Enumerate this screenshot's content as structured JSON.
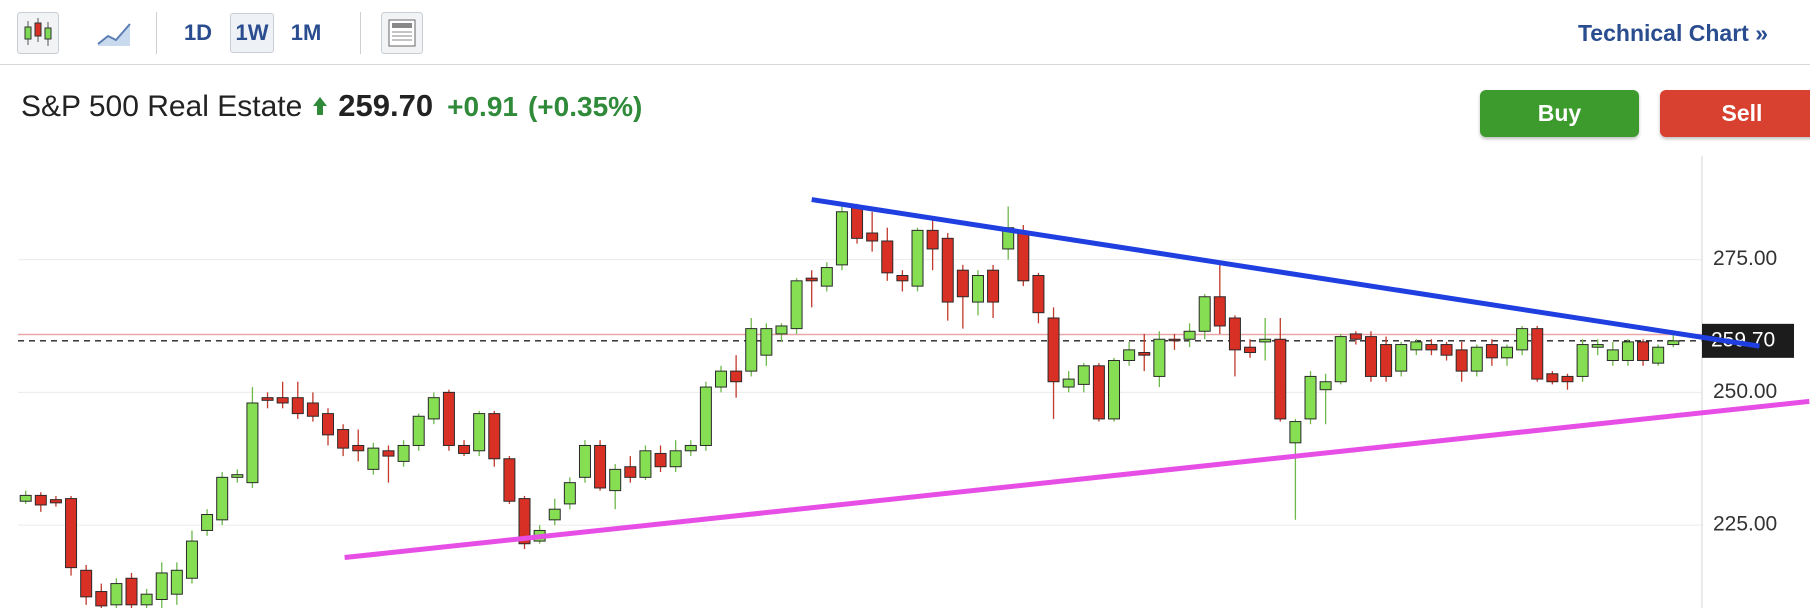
{
  "toolbar": {
    "intervals": [
      "1D",
      "1W",
      "1M"
    ],
    "active": "1W",
    "link": "Technical Chart »"
  },
  "header": {
    "name": "S&P 500 Real Estate",
    "price": "259.70",
    "change": "+0.91",
    "change_pct": "(+0.35%)"
  },
  "buttons": {
    "buy": "Buy",
    "sell": "Sell"
  },
  "chart_data": {
    "type": "candlestick",
    "up_color": "#86de52",
    "down_color": "#d93025",
    "xlim": [
      -1.7,
      110.9
    ],
    "ylim": [
      209.4,
      294.5
    ],
    "yticks": [
      {
        "value": 225,
        "label": "225.00"
      },
      {
        "value": 250,
        "label": "250.00"
      },
      {
        "value": 275,
        "label": "275.00"
      }
    ],
    "grid": true,
    "open": [
      229.5,
      230.6,
      229.8,
      230,
      216.5,
      212.5,
      210,
      215,
      210,
      211,
      212,
      215,
      224,
      226,
      234,
      233,
      249,
      249,
      249,
      248,
      246,
      243,
      240,
      235.5,
      239,
      237,
      240,
      245,
      250,
      240,
      239,
      246,
      237.5,
      230,
      222,
      226,
      229,
      234,
      240,
      231.5,
      236,
      234,
      238.5,
      236,
      239,
      240,
      251,
      254,
      254,
      257,
      261,
      262,
      271.5,
      270,
      274,
      285,
      280,
      278.5,
      272,
      270,
      280.5,
      279,
      273,
      267,
      273,
      277,
      280,
      272,
      264,
      251,
      251.5,
      255,
      245,
      256,
      257.5,
      253,
      260,
      260,
      261.5,
      268,
      264,
      258.5,
      259.5,
      260,
      240.5,
      245,
      250.5,
      252,
      261,
      260.5,
      259,
      254,
      258,
      259,
      259,
      258,
      254,
      259,
      256.5,
      258,
      262,
      253.5,
      253,
      253,
      258.5,
      256,
      256,
      259.5,
      255.5,
      259
    ],
    "high": [
      231.5,
      231.2,
      230.5,
      230.5,
      217.5,
      214,
      215,
      216,
      213,
      218,
      218,
      224,
      228,
      235,
      235.5,
      251,
      250,
      252,
      252,
      250,
      247,
      244,
      243,
      240.5,
      240,
      241,
      246,
      250,
      250.5,
      241,
      246.5,
      246.5,
      238,
      230.5,
      225,
      230,
      234,
      241,
      241,
      236.5,
      238,
      240,
      240,
      241,
      241,
      252,
      255,
      257,
      264,
      263,
      263,
      271.5,
      273,
      274.5,
      285,
      285.5,
      284,
      281,
      273,
      281,
      283,
      280,
      274,
      273,
      274,
      285,
      281.5,
      272.5,
      266,
      254,
      255.5,
      255.5,
      256.5,
      259.5,
      261,
      261.5,
      261,
      263,
      268.5,
      274,
      264.5,
      260,
      264,
      264,
      245,
      254,
      253.5,
      261,
      261.5,
      261.5,
      260.5,
      259.5,
      260,
      260,
      259.5,
      259.5,
      259,
      260,
      259,
      262.5,
      262.5,
      254,
      253.5,
      260,
      260,
      259.5,
      260,
      260,
      259,
      261
    ],
    "low": [
      229,
      227.5,
      228.5,
      215.5,
      210,
      209.3,
      209.3,
      209.3,
      209.3,
      209.3,
      210,
      214,
      223,
      225,
      233,
      232,
      247,
      247,
      245,
      244.5,
      240,
      238,
      237,
      234.5,
      233,
      236,
      239,
      244,
      239,
      238,
      238,
      236,
      229,
      220.5,
      221.5,
      225,
      228,
      233,
      231.5,
      228,
      233,
      233.5,
      235,
      235,
      238,
      239,
      250,
      249,
      253,
      255,
      259.5,
      261,
      266,
      269,
      273,
      278,
      276.5,
      271,
      269,
      269,
      273,
      263.5,
      262,
      264.5,
      264,
      275,
      270,
      263,
      245,
      250,
      250,
      244.5,
      244.5,
      255,
      254,
      251,
      258,
      258.5,
      260,
      261,
      253,
      256.5,
      256,
      244.5,
      226,
      244,
      244,
      251.5,
      259,
      252,
      252,
      253,
      257,
      257,
      256,
      252,
      253,
      255,
      255,
      257,
      252,
      251.5,
      250.5,
      252,
      257,
      255,
      255,
      255,
      255,
      258.5
    ],
    "close": [
      230.6,
      228.8,
      229.2,
      217,
      211.5,
      209.8,
      214,
      210,
      212,
      216,
      216.5,
      222,
      227,
      234,
      234.5,
      248,
      248.5,
      248,
      246,
      245.5,
      242,
      239.5,
      239,
      239.5,
      238,
      240,
      245.5,
      249,
      240,
      238.5,
      246,
      237.5,
      229.5,
      221.5,
      224,
      228,
      233,
      240,
      232,
      235.5,
      234,
      239,
      236,
      239,
      240,
      251,
      254,
      252,
      262,
      262,
      262.5,
      271,
      271,
      273.5,
      284,
      279,
      278.5,
      272.5,
      271,
      280.5,
      277,
      267,
      268,
      272,
      267,
      281,
      271,
      265,
      252,
      252.5,
      255,
      245,
      256,
      258,
      257,
      260,
      259.8,
      261.5,
      268,
      262.5,
      258,
      257.5,
      260,
      245,
      244.5,
      253,
      252,
      260.5,
      260,
      253,
      253,
      259,
      259.5,
      258,
      257,
      254,
      258.5,
      256.5,
      258.5,
      262,
      252.5,
      252,
      252,
      259,
      259,
      258,
      259.5,
      256,
      258.5,
      259.7
    ],
    "last_price": {
      "value": 259.7,
      "label": "259.70"
    },
    "ref_line": {
      "value": 260.9,
      "color": "#e9a7a7"
    },
    "trendlines": [
      {
        "color": "#1f3fe0",
        "x": [
          52.0,
          114.7
        ],
        "y": [
          286.3,
          258.7
        ]
      },
      {
        "color": "#e64ee6",
        "x": [
          21.1,
          118.0
        ],
        "y": [
          218.9,
          248.3
        ]
      }
    ]
  }
}
